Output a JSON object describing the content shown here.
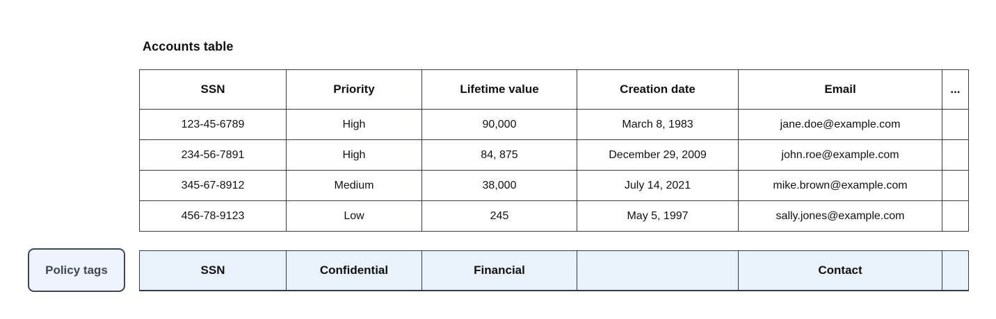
{
  "title": "Accounts table",
  "table": {
    "columns": {
      "ssn": "SSN",
      "priority": "Priority",
      "lifetime_value": "Lifetime value",
      "creation_date": "Creation date",
      "email": "Email",
      "more": "..."
    },
    "rows": [
      [
        "123-45-6789",
        "High",
        "90,000",
        "March 8, 1983",
        "jane.doe@example.com",
        ""
      ],
      [
        "234-56-7891",
        "High",
        "84, 875",
        "December 29, 2009",
        "john.roe@example.com",
        ""
      ],
      [
        "345-67-8912",
        "Medium",
        "38,000",
        "July 14, 2021",
        "mike.brown@example.com",
        ""
      ],
      [
        "456-78-9123",
        "Low",
        "245",
        "May 5, 1997",
        "sally.jones@example.com",
        ""
      ]
    ]
  },
  "policy": {
    "button_label": "Policy tags",
    "tags": [
      "SSN",
      "Confidential",
      "Financial",
      "",
      "Contact",
      ""
    ]
  },
  "colors": {
    "table_border": "#323a46",
    "policy_cell_background": "#e9f1fb",
    "button_background": "#eef3fc",
    "button_border": "#3c4654",
    "button_text": "#3e4754"
  }
}
